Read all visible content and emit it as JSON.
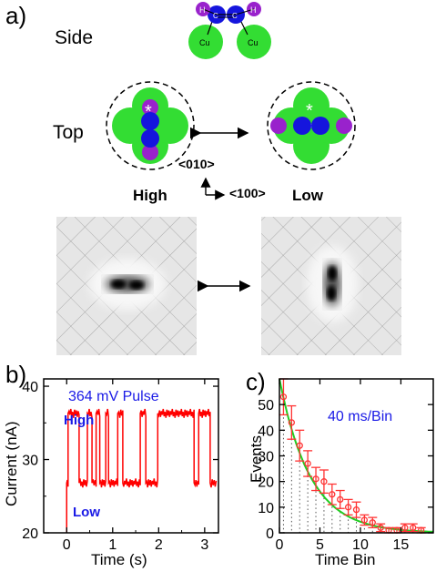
{
  "panel_a": {
    "label": "a)",
    "side_label": "Side",
    "top_label": "Top",
    "state_high": "High",
    "state_low": "Low",
    "dir_010": "<010>",
    "dir_100": "<100>",
    "atom_h": "H",
    "atom_c": "C",
    "atom_cu": "Cu",
    "star": "*",
    "colors": {
      "cu": "#33dd33",
      "c": "#1515dd",
      "h": "#9922cc"
    }
  },
  "chart_data": [
    {
      "type": "line",
      "panel_label": "b)",
      "annotation": "364  mV  Pulse",
      "state_labels": [
        "High",
        "Low"
      ],
      "xlabel": "Time  (s)",
      "ylabel": "Current  (nA)",
      "xlim": [
        -0.5,
        3.3
      ],
      "ylim": [
        20,
        41
      ],
      "xticks": [
        0,
        1,
        2,
        3
      ],
      "yticks": [
        20,
        30,
        40
      ],
      "color": "#ff0000",
      "levels": {
        "high": 36.3,
        "low": 26.8
      },
      "segments": [
        [
          "low",
          0.0,
          0.03
        ],
        [
          "high",
          0.03,
          0.27
        ],
        [
          "low",
          0.27,
          0.45
        ],
        [
          "high",
          0.45,
          0.55
        ],
        [
          "low",
          0.55,
          0.64
        ],
        [
          "high",
          0.64,
          0.72
        ],
        [
          "low",
          0.72,
          0.85
        ],
        [
          "high",
          0.85,
          0.91
        ],
        [
          "low",
          0.91,
          1.11
        ],
        [
          "high",
          1.11,
          1.22
        ],
        [
          "low",
          1.22,
          1.6
        ],
        [
          "high",
          1.6,
          1.72
        ],
        [
          "low",
          1.72,
          1.98
        ],
        [
          "high",
          1.98,
          2.77
        ],
        [
          "low",
          2.77,
          2.87
        ],
        [
          "high",
          2.87,
          3.12
        ],
        [
          "low",
          3.12,
          3.25
        ]
      ],
      "start_jump": [
        0.0,
        20.0
      ]
    },
    {
      "type": "scatter",
      "panel_label": "c)",
      "annotation": "40  ms/Bin",
      "xlabel": "Time  Bin",
      "ylabel": "Events",
      "xlim": [
        0,
        19
      ],
      "ylim": [
        0,
        60
      ],
      "xticks": [
        0,
        5,
        10,
        15
      ],
      "yticks": [
        0,
        10,
        20,
        30,
        40,
        50
      ],
      "x": [
        0.5,
        1.5,
        2.5,
        3.5,
        4.5,
        5.5,
        6.5,
        7.5,
        8.5,
        9.5,
        10.5,
        11.5,
        12.5,
        13.5,
        14.5,
        15.5,
        16.5,
        17.5
      ],
      "y": [
        53,
        43,
        34,
        27,
        21,
        20,
        15,
        13,
        10,
        9,
        5,
        4,
        2,
        1,
        1,
        2,
        2,
        1
      ],
      "yerr": [
        7,
        6.5,
        6,
        5,
        4.5,
        4.5,
        4,
        3.5,
        3,
        3,
        2,
        2,
        1.5,
        1,
        1,
        1.5,
        1.5,
        1
      ],
      "fit_label": "",
      "fit_amplitude": 60,
      "fit_tau": 3.8,
      "marker_color": "#ff3333",
      "fit_color": "#22cc22"
    }
  ]
}
